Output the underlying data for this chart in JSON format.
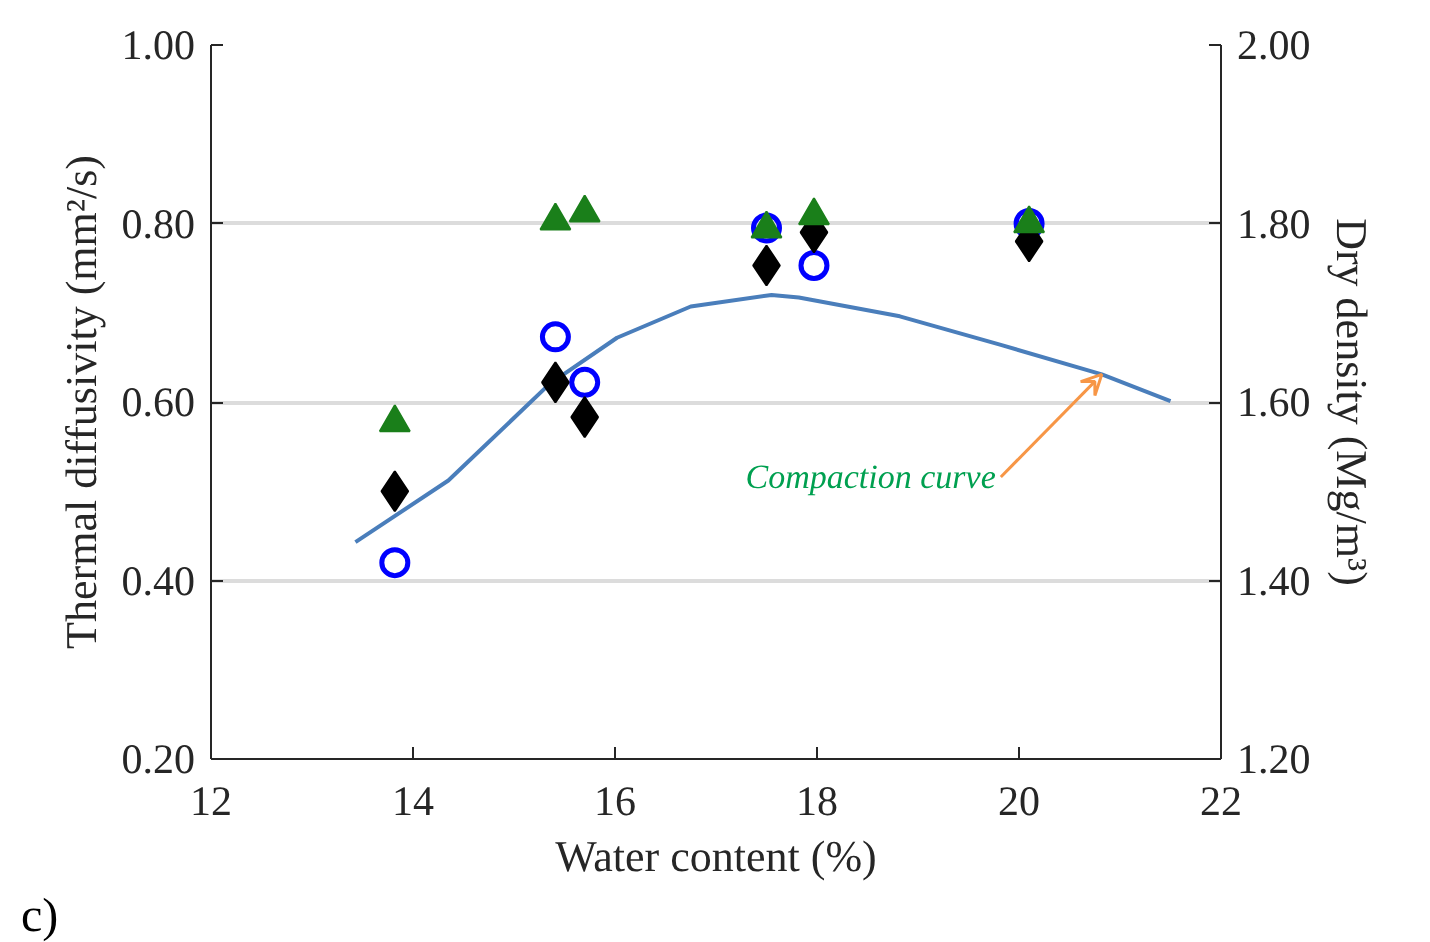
{
  "chart_data": {
    "type": "scatter",
    "xlabel": "Water content (%)",
    "ylabel": "Thermal diffusivity (mm²/s)",
    "y2label": "Dry density (Mg/m³)",
    "xlim": [
      12,
      22
    ],
    "xticks": [
      12,
      14,
      16,
      18,
      20,
      22
    ],
    "ylim": [
      0.2,
      1.0
    ],
    "yticks": [
      {
        "value": 0.2,
        "label": "0.20"
      },
      {
        "value": 0.4,
        "label": "0.40"
      },
      {
        "value": 0.6,
        "label": "0.60"
      },
      {
        "value": 0.8,
        "label": "0.80"
      },
      {
        "value": 1.0,
        "label": "1.00"
      }
    ],
    "y2lim": [
      1.2,
      2.0
    ],
    "y2ticks": [
      {
        "value": 1.2,
        "label": "1.20"
      },
      {
        "value": 1.4,
        "label": "1.40"
      },
      {
        "value": 1.6,
        "label": "1.60"
      },
      {
        "value": 1.8,
        "label": "1.80"
      },
      {
        "value": 2.0,
        "label": "2.00"
      }
    ],
    "grid": "y",
    "series": [
      {
        "type": "line",
        "axis": "y2",
        "color": "#4a7ebb",
        "x": [
          13.43,
          14.35,
          15.35,
          16.02,
          16.75,
          17.55,
          17.82,
          18.82,
          19.82,
          20.82,
          21.5
        ],
        "values": [
          1.443,
          1.512,
          1.62,
          1.672,
          1.707,
          1.72,
          1.717,
          1.696,
          1.664,
          1.631,
          1.601
        ]
      },
      {
        "marker": "circle",
        "color": "#0000ff",
        "x": [
          13.82,
          15.41,
          15.7,
          17.5,
          17.97,
          20.1
        ],
        "values": [
          0.42,
          0.673,
          0.622,
          0.795,
          0.753,
          0.8
        ]
      },
      {
        "marker": "diamond",
        "color": "#000000",
        "x": [
          13.82,
          15.41,
          15.7,
          17.5,
          17.97,
          20.1
        ],
        "values": [
          0.5,
          0.622,
          0.583,
          0.753,
          0.79,
          0.78
        ]
      },
      {
        "marker": "triangle",
        "color": "#1a7f1a",
        "x": [
          13.82,
          15.41,
          15.7,
          17.5,
          17.97,
          20.1
        ],
        "values": [
          0.577,
          0.803,
          0.812,
          0.794,
          0.809,
          0.8
        ]
      }
    ],
    "annotations": [
      {
        "text": "Compaction curve",
        "x": 20.82,
        "y": 0.631
      },
      "c)"
    ]
  }
}
